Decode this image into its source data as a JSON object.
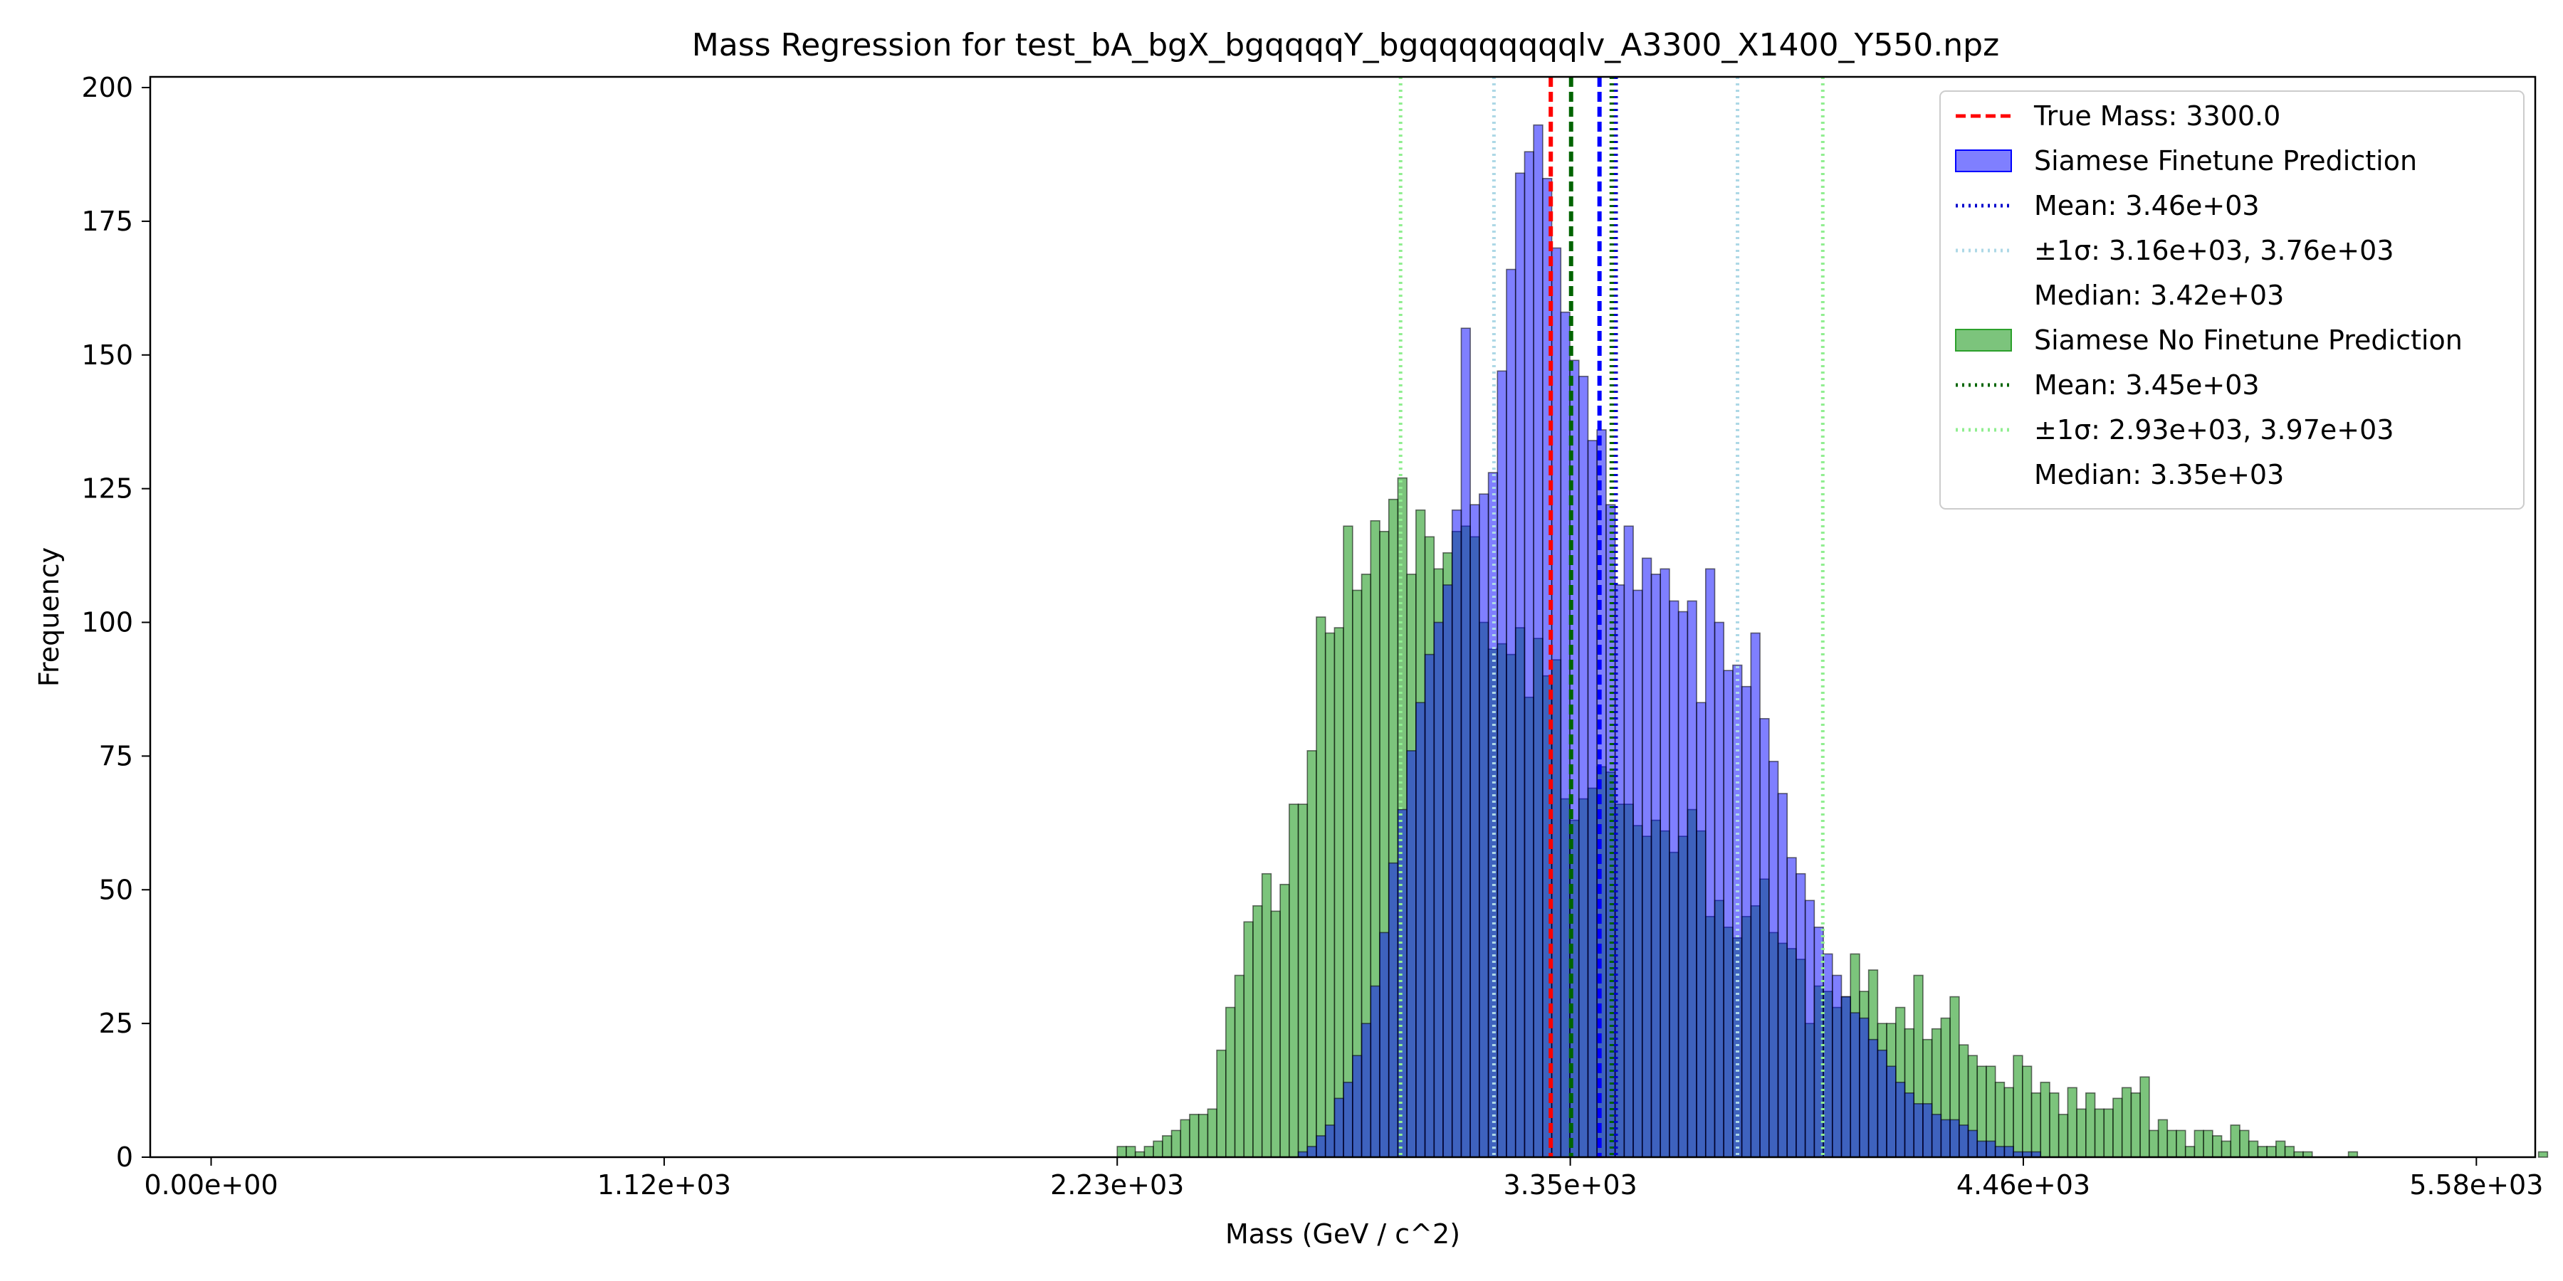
{
  "chart_data": {
    "type": "histogram",
    "title": "Mass Regression for test_bA_bgX_bgqqqqY_bgqqqqqqqqlv_A3300_X1400_Y550.npz",
    "xlabel": "Mass (GeV / c^2)",
    "ylabel": "Frequency",
    "xlim": [
      -150,
      5725
    ],
    "ylim": [
      0,
      202
    ],
    "grid": false,
    "legend_position": "top-right",
    "x_ticks": [
      {
        "value": 0,
        "label": "0.00e+00"
      },
      {
        "value": 1116,
        "label": "1.12e+03"
      },
      {
        "value": 2232,
        "label": "2.23e+03"
      },
      {
        "value": 3348,
        "label": "3.35e+03"
      },
      {
        "value": 4464,
        "label": "4.46e+03"
      },
      {
        "value": 5580,
        "label": "5.58e+03"
      }
    ],
    "y_ticks": [
      {
        "value": 0,
        "label": "0"
      },
      {
        "value": 25,
        "label": "25"
      },
      {
        "value": 50,
        "label": "50"
      },
      {
        "value": 75,
        "label": "75"
      },
      {
        "value": 100,
        "label": "100"
      },
      {
        "value": 125,
        "label": "125"
      },
      {
        "value": 150,
        "label": "150"
      },
      {
        "value": 175,
        "label": "175"
      },
      {
        "value": 200,
        "label": "200"
      }
    ],
    "bin_start": 2232,
    "bin_width": 22.3,
    "series": [
      {
        "name": "Siamese No Finetune Prediction",
        "color": "#2ca02c",
        "opacity": 0.62,
        "values": [
          2,
          2,
          1,
          2,
          3,
          4,
          5,
          7,
          8,
          8,
          9,
          20,
          28,
          34,
          44,
          47,
          53,
          46,
          51,
          66,
          66,
          76,
          101,
          98,
          99,
          118,
          106,
          109,
          119,
          117,
          123,
          127,
          109,
          121,
          116,
          110,
          113,
          117,
          118,
          116,
          100,
          95,
          96,
          94,
          99,
          86,
          97,
          90,
          93,
          67,
          63,
          67,
          69,
          73,
          72,
          66,
          66,
          62,
          60,
          63,
          61,
          57,
          60,
          65,
          61,
          45,
          48,
          43,
          41,
          45,
          47,
          52,
          42,
          40,
          39,
          37,
          25,
          32,
          31,
          28,
          30,
          38,
          31,
          35,
          25,
          25,
          28,
          24,
          34,
          22,
          24,
          26,
          30,
          21,
          19,
          17,
          17,
          14,
          13,
          19,
          17,
          12,
          14,
          12,
          8,
          13,
          9,
          12,
          9,
          9,
          11,
          13,
          12,
          15,
          5,
          7,
          5,
          5,
          2,
          5,
          5,
          4,
          3,
          6,
          5,
          3,
          2,
          2,
          3,
          2,
          1,
          1,
          0,
          0,
          0,
          0,
          1,
          0,
          0,
          0,
          0,
          0,
          0,
          0,
          0,
          0,
          0,
          0,
          0,
          0,
          0,
          0,
          0,
          0,
          0,
          0,
          0,
          1
        ]
      },
      {
        "name": "Siamese Finetune Prediction",
        "color": "#0000ff",
        "opacity": 0.5,
        "values": [
          0,
          0,
          0,
          0,
          0,
          0,
          0,
          0,
          0,
          0,
          0,
          0,
          0,
          0,
          0,
          0,
          0,
          0,
          0,
          0,
          1,
          2,
          4,
          6,
          11,
          14,
          19,
          25,
          32,
          42,
          55,
          65,
          76,
          85,
          94,
          100,
          107,
          121,
          155,
          122,
          124,
          128,
          147,
          166,
          184,
          188,
          193,
          183,
          170,
          158,
          149,
          146,
          134,
          136,
          122,
          107,
          118,
          106,
          112,
          109,
          110,
          104,
          102,
          104,
          85,
          110,
          100,
          91,
          92,
          88,
          98,
          82,
          74,
          68,
          56,
          53,
          48,
          43,
          38,
          34,
          30,
          27,
          26,
          22,
          20,
          17,
          14,
          12,
          10,
          10,
          8,
          7,
          7,
          6,
          5,
          3,
          3,
          2,
          2,
          1,
          1,
          1,
          0,
          0,
          0,
          0,
          0,
          0,
          0,
          0,
          0,
          0,
          0,
          0,
          0,
          0,
          0,
          0,
          0,
          0,
          0,
          0,
          0,
          0,
          0,
          0,
          0,
          0,
          0,
          0,
          0,
          0,
          0,
          0,
          0,
          0,
          0,
          0,
          0,
          0,
          0,
          0,
          0,
          0,
          0,
          0,
          0,
          0,
          0,
          0,
          0,
          0,
          0,
          0,
          0,
          0
        ]
      }
    ],
    "vertical_lines": [
      {
        "name": "true-mass-line",
        "x": 3300,
        "color": "#ff0000",
        "style": "dashed"
      },
      {
        "name": "finetune-mean-line",
        "x": 3460,
        "color": "#0000cc",
        "style": "dotted"
      },
      {
        "name": "finetune-median-line",
        "x": 3420,
        "color": "#0000ff",
        "style": "dashed"
      },
      {
        "name": "finetune-sigma-low-line",
        "x": 3160,
        "color": "#add8e6",
        "style": "dotted"
      },
      {
        "name": "finetune-sigma-high-line",
        "x": 3760,
        "color": "#add8e6",
        "style": "dotted"
      },
      {
        "name": "no-finetune-mean-line",
        "x": 3450,
        "color": "#006400",
        "style": "dotted"
      },
      {
        "name": "no-finetune-median-line",
        "x": 3350,
        "color": "#006400",
        "style": "dashed"
      },
      {
        "name": "no-finetune-sigma-low-line",
        "x": 2930,
        "color": "#90ee90",
        "style": "dotted"
      },
      {
        "name": "no-finetune-sigma-high-line",
        "x": 3970,
        "color": "#90ee90",
        "style": "dotted"
      }
    ],
    "legend": [
      {
        "label": "True Mass: 3300.0",
        "kind": "line",
        "color": "#ff0000",
        "style": "dashed"
      },
      {
        "label": "Siamese Finetune Prediction",
        "kind": "patch",
        "color": "#0000ff",
        "opacity": 0.5
      },
      {
        "label": "Mean: 3.46e+03",
        "kind": "line",
        "color": "#0000cc",
        "style": "dotted"
      },
      {
        "label": "±1σ: 3.16e+03, 3.76e+03",
        "kind": "line",
        "color": "#add8e6",
        "style": "dotted"
      },
      {
        "label": "Median: 3.42e+03",
        "kind": "none",
        "color": "#0000ff",
        "style": "none"
      },
      {
        "label": "Siamese No Finetune Prediction",
        "kind": "patch",
        "color": "#2ca02c",
        "opacity": 0.62
      },
      {
        "label": "Mean: 3.45e+03",
        "kind": "line",
        "color": "#006400",
        "style": "dotted"
      },
      {
        "label": "±1σ: 2.93e+03, 3.97e+03",
        "kind": "line",
        "color": "#90ee90",
        "style": "dotted"
      },
      {
        "label": "Median: 3.35e+03",
        "kind": "none",
        "color": "#006400",
        "style": "none"
      }
    ]
  }
}
